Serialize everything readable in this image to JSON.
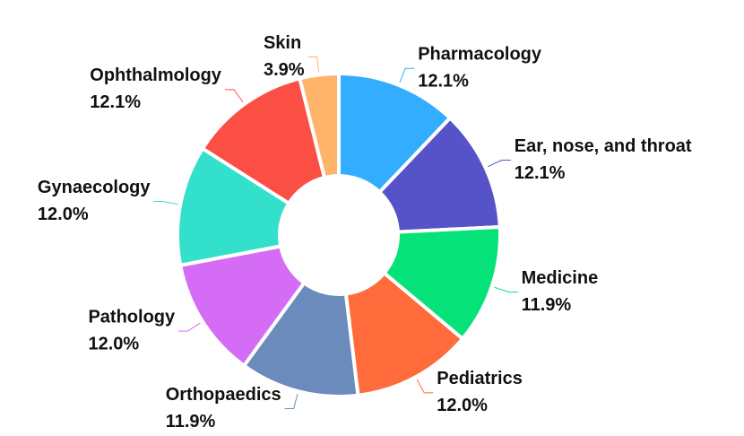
{
  "chart_data": {
    "type": "donut",
    "categories": [
      "Pharmacology",
      "Ear, nose, and throat",
      "Medicine",
      "Pediatrics",
      "Orthopaedics",
      "Pathology",
      "Gynaecology",
      "Ophthalmology",
      "Skin"
    ],
    "values": [
      12.1,
      12.1,
      11.9,
      12.0,
      11.9,
      12.0,
      12.0,
      12.1,
      3.9
    ],
    "value_labels": [
      "12.1%",
      "12.1%",
      "11.9%",
      "12.0%",
      "11.9%",
      "12.0%",
      "12.0%",
      "12.1%",
      "3.9%"
    ],
    "colors": [
      "#33adff",
      "#5653c9",
      "#06e27a",
      "#ff6b3b",
      "#6b8bbd",
      "#d46cf6",
      "#32e0cc",
      "#fb4f46",
      "#ffb46b"
    ]
  }
}
